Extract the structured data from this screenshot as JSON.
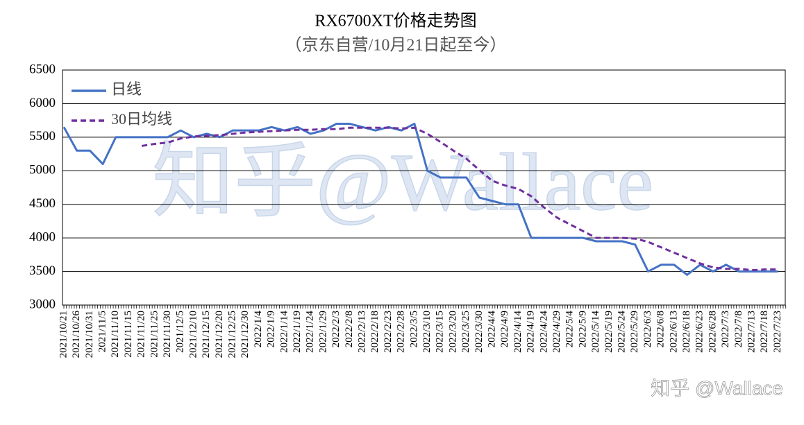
{
  "chart_data": {
    "type": "line",
    "title": "RX6700XT价格走势图",
    "subtitle": "（京东自营/10月21日起至今）",
    "watermark": "知乎@Wallace",
    "corner_watermark": "知乎 @Wallace",
    "categories": [
      "2021/10/21",
      "2021/10/26",
      "2021/10/31",
      "2021/11/5",
      "2021/11/10",
      "2021/11/15",
      "2021/11/20",
      "2021/11/25",
      "2021/11/30",
      "2021/12/5",
      "2021/12/10",
      "2021/12/15",
      "2021/12/20",
      "2021/12/25",
      "2021/12/30",
      "2022/1/4",
      "2022/1/9",
      "2022/1/14",
      "2022/1/19",
      "2022/1/24",
      "2022/1/29",
      "2022/2/3",
      "2022/2/8",
      "2022/2/13",
      "2022/2/18",
      "2022/2/23",
      "2022/2/28",
      "2022/3/5",
      "2022/3/10",
      "2022/3/15",
      "2022/3/20",
      "2022/3/25",
      "2022/3/30",
      "2022/4/4",
      "2022/4/9",
      "2022/4/14",
      "2022/4/19",
      "2022/4/24",
      "2022/4/29",
      "2022/5/4",
      "2022/5/9",
      "2022/5/14",
      "2022/5/19",
      "2022/5/24",
      "2022/5/29",
      "2022/6/3",
      "2022/6/8",
      "2022/6/13",
      "2022/6/18",
      "2022/6/23",
      "2022/6/28",
      "2022/7/3",
      "2022/7/8",
      "2022/7/13",
      "2022/7/18",
      "2022/7/23"
    ],
    "series": [
      {
        "name": "日线",
        "color": "#4472c4",
        "dash": false,
        "values": [
          5650,
          5300,
          5300,
          5100,
          5500,
          5500,
          5500,
          5500,
          5500,
          5600,
          5500,
          5550,
          5500,
          5600,
          5600,
          5600,
          5650,
          5600,
          5650,
          5550,
          5600,
          5700,
          5700,
          5650,
          5600,
          5650,
          5600,
          5700,
          5000,
          4900,
          4900,
          4900,
          4600,
          4550,
          4500,
          4500,
          4000,
          4000,
          4000,
          4000,
          4000,
          3950,
          3950,
          3950,
          3900,
          3500,
          3600,
          3600,
          3450,
          3600,
          3500,
          3600,
          3500,
          3500,
          3500,
          3500
        ]
      },
      {
        "name": "30日均线",
        "color": "#7030a0",
        "dash": true,
        "values": [
          null,
          null,
          null,
          null,
          null,
          null,
          5370,
          5400,
          5420,
          5480,
          5510,
          5520,
          5530,
          5550,
          5570,
          5580,
          5590,
          5600,
          5610,
          5610,
          5620,
          5620,
          5640,
          5640,
          5640,
          5640,
          5630,
          5640,
          5550,
          5430,
          5300,
          5180,
          5010,
          4850,
          4780,
          4730,
          4620,
          4450,
          4300,
          4200,
          4100,
          4000,
          4000,
          4000,
          3990,
          3940,
          3860,
          3780,
          3700,
          3620,
          3560,
          3540,
          3540,
          3520,
          3530,
          3530
        ]
      }
    ],
    "ylim": [
      3000,
      6500
    ],
    "yticks": [
      3000,
      3500,
      4000,
      4500,
      5000,
      5500,
      6000,
      6500
    ],
    "grid": true,
    "legend": "top-left"
  }
}
